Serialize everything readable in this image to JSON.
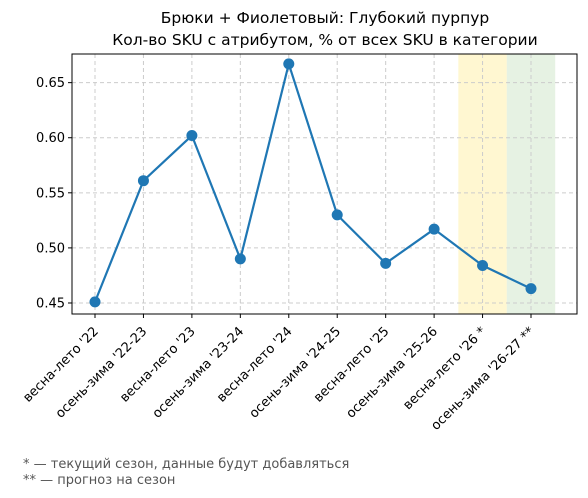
{
  "chart_data": {
    "type": "line",
    "title": "Брюки + Фиолетовый: Глубокий пурпур",
    "subtitle": "Кол-во SKU с атрибутом, % от всех SKU в категории",
    "xlabel": "",
    "ylabel": "",
    "categories": [
      "весна-лето '22",
      "осень-зима '22-23",
      "весна-лето '23",
      "осень-зима '23-24",
      "весна-лето '24",
      "осень-зима '24-25",
      "весна-лето '25",
      "осень-зима '25-26",
      "весна-лето '26 *",
      "осень-зима '26-27 **"
    ],
    "values": [
      0.451,
      0.561,
      0.602,
      0.49,
      0.667,
      0.53,
      0.486,
      0.517,
      0.484,
      0.463
    ],
    "ylim": [
      0.44,
      0.676
    ],
    "yticks": [
      "0.45",
      "0.50",
      "0.55",
      "0.60",
      "0.65"
    ],
    "grid": true,
    "line_color": "#1f77b4",
    "highlight_current_color": "#fff2b3",
    "highlight_forecast_color": "#d5ead0"
  },
  "footnotes": {
    "current": "* — текущий сезон, данные будут добавляться",
    "forecast": "** — прогноз на сезон"
  }
}
